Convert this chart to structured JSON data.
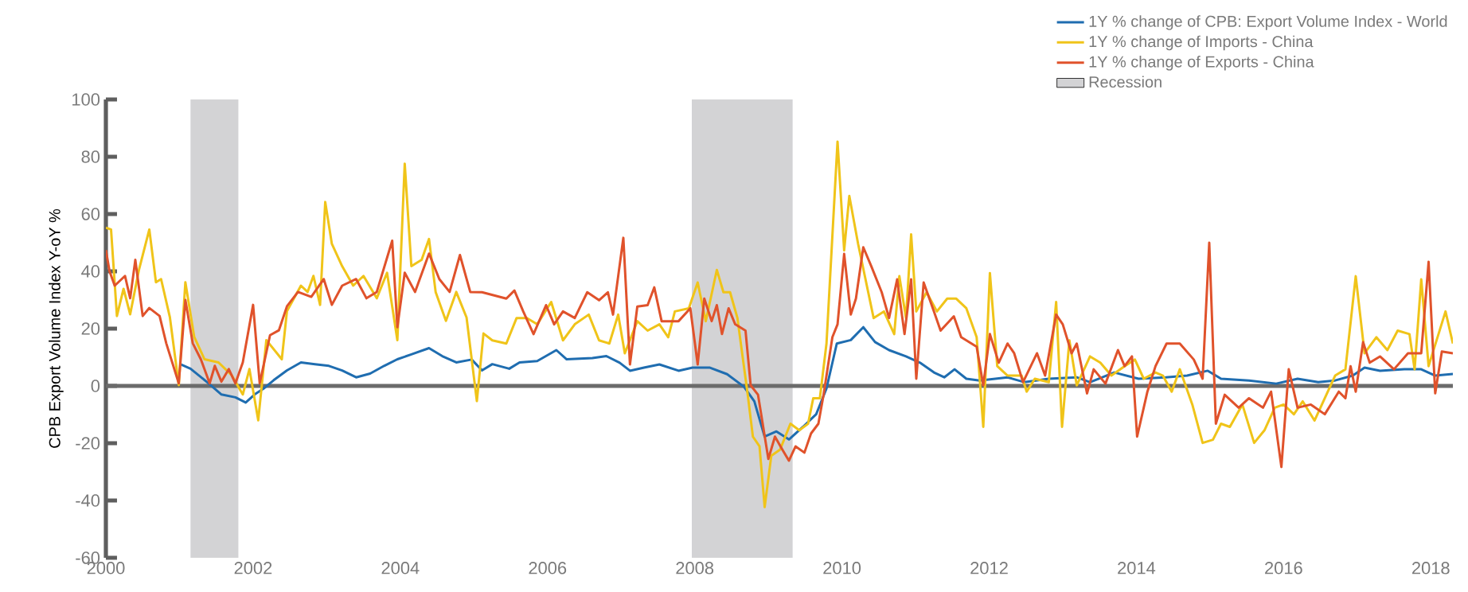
{
  "chart_data": {
    "type": "line",
    "ylabel": "CPB Export Volume Index Y-oY %",
    "xlim": [
      2000,
      2018.3
    ],
    "ylim": [
      -60,
      100
    ],
    "xticks": [
      2000,
      2002,
      2004,
      2006,
      2008,
      2010,
      2012,
      2014,
      2016,
      2018
    ],
    "yticks": [
      -60,
      -40,
      -20,
      0,
      20,
      40,
      60,
      80,
      100
    ],
    "legend": "top right",
    "bands": [
      {
        "axis": "x",
        "from": 2001.15,
        "to": 2001.8,
        "label": "Recession",
        "color": "#d3d3d5"
      },
      {
        "axis": "x",
        "from": 2007.96,
        "to": 2009.33,
        "color": "#d3d3d5"
      }
    ],
    "ref_lines": [
      {
        "axis": "y",
        "value": 0,
        "color": "#6b6b6b"
      }
    ],
    "series": [
      {
        "name": "1Y % change of CPB: Export Volume Index - World",
        "color": "#1f6db0",
        "x": [
          2001.01,
          2001.15,
          2001.39,
          2001.57,
          2001.76,
          2001.9,
          2002.02,
          2002.14,
          2002.28,
          2002.46,
          2002.65,
          2002.84,
          2003.03,
          2003.21,
          2003.4,
          2003.59,
          2003.78,
          2003.96,
          2004.15,
          2004.39,
          2004.57,
          2004.76,
          2004.97,
          2005.11,
          2005.25,
          2005.48,
          2005.62,
          2005.86,
          2006.12,
          2006.26,
          2006.61,
          2006.8,
          2006.98,
          2007.12,
          2007.31,
          2007.52,
          2007.78,
          2007.97,
          2008.2,
          2008.44,
          2008.67,
          2008.81,
          2008.95,
          2009.11,
          2009.28,
          2009.47,
          2009.65,
          2009.79,
          2009.93,
          2010.12,
          2010.29,
          2010.45,
          2010.64,
          2010.87,
          2011.06,
          2011.25,
          2011.39,
          2011.53,
          2011.69,
          2011.87,
          2012.25,
          2012.48,
          2012.81,
          2013.19,
          2013.37,
          2013.7,
          2014.03,
          2014.4,
          2014.69,
          2014.97,
          2015.15,
          2015.53,
          2015.9,
          2016.19,
          2016.47,
          2016.7,
          2016.94,
          2017.1,
          2017.31,
          2017.64,
          2017.87,
          2018.06,
          2018.3
        ],
        "values": [
          7.6,
          6,
          1,
          -3,
          -4,
          -5.8,
          -3,
          -1,
          2,
          5.4,
          8.2,
          7.6,
          7,
          5.4,
          3,
          4.3,
          7,
          9.3,
          11,
          13.2,
          10.4,
          8.2,
          9.2,
          5.4,
          7.6,
          6,
          8.2,
          8.7,
          12.5,
          9.3,
          9.7,
          10.4,
          8.1,
          5.3,
          6.4,
          7.5,
          5.3,
          6.4,
          6.4,
          4.1,
          -0.3,
          -5.4,
          -17.7,
          -15.9,
          -18.7,
          -14.3,
          -9.9,
          -0.9,
          14.8,
          16,
          20.5,
          15.3,
          12.5,
          10.3,
          8.1,
          4.7,
          3,
          5.8,
          2.5,
          1.9,
          3,
          1.3,
          2.5,
          3,
          1.3,
          4.7,
          2.5,
          3,
          3.6,
          5.3,
          2.5,
          1.9,
          0.8,
          2.5,
          1.3,
          1.9,
          3.6,
          6.4,
          5.3,
          5.8,
          5.8,
          3.6,
          4.2
        ]
      },
      {
        "name": "1Y % change of Imports - China",
        "color": "#f0c419",
        "x": [
          2000,
          2000.07,
          2000.15,
          2000.24,
          2000.33,
          2000.45,
          2000.59,
          2000.68,
          2000.75,
          2000.87,
          2000.99,
          2001.08,
          2001.2,
          2001.34,
          2001.53,
          2001.71,
          2001.86,
          2001.95,
          2002.07,
          2002.18,
          2002.39,
          2002.46,
          2002.65,
          2002.74,
          2002.82,
          2002.91,
          2002.98,
          2003.07,
          2003.21,
          2003.36,
          2003.5,
          2003.68,
          2003.82,
          2003.96,
          2004.06,
          2004.15,
          2004.29,
          2004.39,
          2004.48,
          2004.62,
          2004.76,
          2004.9,
          2005.04,
          2005.13,
          2005.25,
          2005.44,
          2005.58,
          2005.72,
          2005.86,
          2006.05,
          2006.21,
          2006.37,
          2006.56,
          2006.7,
          2006.84,
          2006.96,
          2007.05,
          2007.22,
          2007.36,
          2007.52,
          2007.64,
          2007.73,
          2007.92,
          2008.04,
          2008.15,
          2008.3,
          2008.39,
          2008.48,
          2008.58,
          2008.72,
          2008.79,
          2008.88,
          2008.95,
          2009.04,
          2009.16,
          2009.3,
          2009.42,
          2009.54,
          2009.61,
          2009.7,
          2009.79,
          2009.94,
          2010.03,
          2010.1,
          2010.22,
          2010.43,
          2010.57,
          2010.71,
          2010.78,
          2010.87,
          2010.94,
          2011.01,
          2011.15,
          2011.29,
          2011.43,
          2011.55,
          2011.69,
          2011.83,
          2011.92,
          2012.01,
          2012.11,
          2012.25,
          2012.44,
          2012.51,
          2012.62,
          2012.81,
          2012.91,
          2012.99,
          2013.09,
          2013.19,
          2013.37,
          2013.51,
          2013.66,
          2013.84,
          2013.98,
          2014.1,
          2014.26,
          2014.36,
          2014.48,
          2014.59,
          2014.76,
          2014.9,
          2015.04,
          2015.15,
          2015.27,
          2015.44,
          2015.6,
          2015.74,
          2015.88,
          2016.0,
          2016.14,
          2016.26,
          2016.42,
          2016.56,
          2016.7,
          2016.84,
          2016.98,
          2017.1,
          2017.26,
          2017.41,
          2017.55,
          2017.71,
          2017.78,
          2017.87,
          2017.97,
          2018.2,
          2018.3
        ],
        "values": [
          55.2,
          54.6,
          24.4,
          33.9,
          25,
          40.6,
          54.6,
          36.2,
          37.3,
          23.9,
          0.3,
          36.2,
          17.1,
          9.3,
          8.2,
          3.7,
          -3,
          5.9,
          -12,
          16,
          9.3,
          26.1,
          35,
          32.8,
          38.4,
          28.3,
          64.2,
          49.6,
          41.8,
          35,
          38.4,
          30.6,
          39.5,
          16,
          77.6,
          41.8,
          44,
          51.3,
          32.8,
          22.7,
          32.8,
          23.9,
          -5.3,
          18.3,
          15.9,
          14.8,
          23.7,
          23.7,
          21.5,
          29.3,
          15.9,
          21.5,
          24.9,
          15.9,
          14.8,
          24.9,
          11.4,
          22.6,
          19.3,
          21.5,
          17,
          26,
          27.1,
          36.1,
          22.6,
          40.5,
          32.7,
          32.7,
          23.7,
          -3.1,
          -17.7,
          -21.1,
          -42.3,
          -24.4,
          -22.2,
          -13.2,
          -15.5,
          -13.2,
          -4.3,
          -4.3,
          14.8,
          85.3,
          47.3,
          66.3,
          49.5,
          23.7,
          26,
          18.1,
          38.3,
          23.7,
          52.9,
          26,
          32.7,
          26,
          30.5,
          30.5,
          27.1,
          17,
          -14.3,
          39.4,
          6.9,
          3.6,
          3.6,
          -2,
          2.5,
          1.3,
          29.3,
          -14.3,
          15.9,
          0.2,
          10.3,
          8.1,
          3.6,
          6.9,
          9.2,
          2.5,
          4.7,
          3.6,
          -2,
          5.8,
          -6.5,
          -19.9,
          -18.8,
          -13.2,
          -14.3,
          -6.5,
          -19.9,
          -15.5,
          -7.6,
          -6.5,
          -9.9,
          -5.4,
          -12.1,
          -4.3,
          3.6,
          5.8,
          38.3,
          11.4,
          17,
          12.5,
          19.3,
          18.1,
          5.8,
          37.2,
          6.9,
          26,
          14.8
        ]
      },
      {
        "name": "1Y % change of Exports - China",
        "color": "#e0522b",
        "x": [
          2000,
          2000.05,
          2000.12,
          2000.26,
          2000.33,
          2000.4,
          2000.5,
          2000.59,
          2000.73,
          2000.82,
          2000.99,
          2001.08,
          2001.18,
          2001.29,
          2001.41,
          2001.48,
          2001.57,
          2001.67,
          2001.76,
          2001.86,
          2002.0,
          2002.09,
          2002.23,
          2002.35,
          2002.46,
          2002.61,
          2002.79,
          2002.96,
          2003.07,
          2003.21,
          2003.4,
          2003.54,
          2003.68,
          2003.89,
          2003.96,
          2004.06,
          2004.2,
          2004.39,
          2004.53,
          2004.67,
          2004.81,
          2004.95,
          2005.11,
          2005.44,
          2005.55,
          2005.67,
          2005.81,
          2005.98,
          2006.09,
          2006.21,
          2006.37,
          2006.54,
          2006.7,
          2006.82,
          2006.89,
          2007.03,
          2007.12,
          2007.22,
          2007.36,
          2007.45,
          2007.55,
          2007.78,
          2007.94,
          2008.04,
          2008.13,
          2008.23,
          2008.3,
          2008.37,
          2008.46,
          2008.55,
          2008.69,
          2008.76,
          2008.86,
          2009.0,
          2009.09,
          2009.19,
          2009.28,
          2009.37,
          2009.49,
          2009.58,
          2009.68,
          2009.75,
          2009.87,
          2009.94,
          2010.03,
          2010.12,
          2010.19,
          2010.29,
          2010.4,
          2010.54,
          2010.64,
          2010.75,
          2010.85,
          2010.94,
          2011.01,
          2011.11,
          2011.25,
          2011.34,
          2011.52,
          2011.62,
          2011.83,
          2011.92,
          2012.01,
          2012.13,
          2012.25,
          2012.34,
          2012.46,
          2012.65,
          2012.76,
          2012.91,
          2013.0,
          2013.12,
          2013.19,
          2013.33,
          2013.42,
          2013.58,
          2013.75,
          2013.84,
          2013.94,
          2014.01,
          2014.15,
          2014.26,
          2014.41,
          2014.59,
          2014.78,
          2014.9,
          2014.99,
          2015.08,
          2015.2,
          2015.39,
          2015.53,
          2015.72,
          2015.83,
          2015.97,
          2016.07,
          2016.19,
          2016.37,
          2016.56,
          2016.75,
          2016.84,
          2016.91,
          2016.98,
          2017.08,
          2017.17,
          2017.31,
          2017.5,
          2017.69,
          2017.87,
          2017.97,
          2018.06,
          2018.15,
          2018.3
        ],
        "values": [
          47.4,
          40,
          35,
          38.4,
          30.6,
          44,
          24.4,
          27.2,
          24.4,
          14.9,
          0.9,
          30,
          14.9,
          9.3,
          0.9,
          7,
          1.5,
          5.9,
          0.9,
          8.2,
          28.3,
          0.9,
          17.7,
          19.4,
          27.8,
          32.8,
          31.1,
          37.3,
          28.3,
          35,
          37.3,
          30.6,
          32.8,
          50.7,
          20.5,
          39.5,
          32.8,
          46.2,
          37.3,
          32.8,
          45.7,
          32.8,
          32.7,
          30.5,
          33.3,
          26,
          18.1,
          28.2,
          21.5,
          26,
          23.7,
          32.7,
          29.9,
          32.7,
          24.9,
          51.7,
          7.5,
          27.7,
          28.2,
          34.4,
          22.6,
          22.6,
          27.1,
          7.5,
          30.5,
          22.6,
          28.2,
          18.1,
          27.1,
          21.5,
          19.3,
          0.2,
          -3.1,
          -25.5,
          -17.7,
          -22.2,
          -26.1,
          -21.1,
          -23.3,
          -16.6,
          -13.2,
          -3.1,
          17,
          21.5,
          46.1,
          24.9,
          30.5,
          48.4,
          41.7,
          32.7,
          23.7,
          37.2,
          18.1,
          37.2,
          2.5,
          36.1,
          26,
          19.3,
          24.3,
          17,
          13.7,
          0.2,
          18.1,
          8.1,
          14.8,
          11.4,
          1.3,
          11.4,
          3.6,
          24.9,
          21.5,
          11.4,
          14.8,
          -2.6,
          5.8,
          0.8,
          12.5,
          6.9,
          10.3,
          -17.7,
          -2,
          6.9,
          14.8,
          14.8,
          9.2,
          2.5,
          50,
          -13.2,
          -3.1,
          -7.6,
          -4.3,
          -7.6,
          -2,
          -28.3,
          5.8,
          -7.6,
          -6.5,
          -9.9,
          -2,
          -4.3,
          6.9,
          -2,
          15.3,
          8.1,
          10.3,
          5.8,
          11.4,
          11.4,
          43.3,
          -2.6,
          12,
          11.4
        ]
      }
    ]
  }
}
